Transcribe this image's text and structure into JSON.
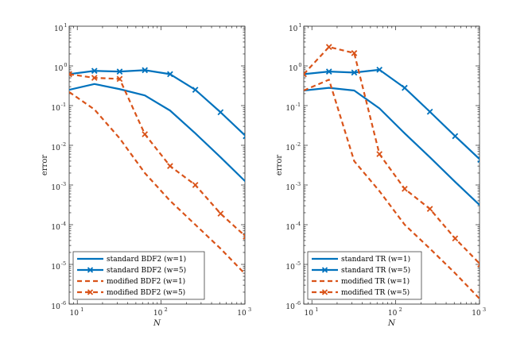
{
  "colors": {
    "standard": "#0072BD",
    "modified": "#D95319"
  },
  "chart_data": [
    {
      "type": "line",
      "x_scale": "log",
      "y_scale": "log",
      "xlabel": "N",
      "ylabel": "error",
      "xlim": [
        8,
        1000
      ],
      "ylim": [
        1e-06,
        10
      ],
      "x_ticks": [
        {
          "base": "10",
          "exp": "1",
          "value": 10
        },
        {
          "base": "10",
          "exp": "2",
          "value": 100
        },
        {
          "base": "10",
          "exp": "3",
          "value": 1000
        }
      ],
      "y_ticks": [
        {
          "base": "10",
          "exp": "-6",
          "value": 1e-06
        },
        {
          "base": "10",
          "exp": "-5",
          "value": 1e-05
        },
        {
          "base": "10",
          "exp": "-4",
          "value": 0.0001
        },
        {
          "base": "10",
          "exp": "-3",
          "value": 0.001
        },
        {
          "base": "10",
          "exp": "-2",
          "value": 0.01
        },
        {
          "base": "10",
          "exp": "-1",
          "value": 0.1
        },
        {
          "base": "10",
          "exp": "0",
          "value": 1
        },
        {
          "base": "10",
          "exp": "1",
          "value": 10
        }
      ],
      "x": [
        8,
        16,
        32,
        64,
        128,
        256,
        512,
        1024
      ],
      "legend_location": "bottom-left",
      "series": [
        {
          "name": "standard BDF2 (w=1)",
          "style": "solid",
          "marker": "none",
          "color_key": "standard",
          "values": [
            0.25,
            0.35,
            0.26,
            0.18,
            0.075,
            0.02,
            0.005,
            0.0012
          ]
        },
        {
          "name": "standard BDF2 (w=5)",
          "style": "solid",
          "marker": "x",
          "color_key": "standard",
          "values": [
            0.62,
            0.75,
            0.72,
            0.78,
            0.62,
            0.25,
            0.068,
            0.017
          ]
        },
        {
          "name": "modified BDF2 (w=1)",
          "style": "dashed",
          "marker": "none",
          "color_key": "modified",
          "values": [
            0.22,
            0.08,
            0.015,
            0.002,
            0.0004,
            0.0001,
            2.5e-05,
            5.5e-06
          ]
        },
        {
          "name": "modified BDF2 (w=5)",
          "style": "dashed",
          "marker": "x",
          "color_key": "modified",
          "values": [
            0.62,
            0.5,
            0.47,
            0.019,
            0.003,
            0.001,
            0.00019,
            5e-05
          ]
        }
      ]
    },
    {
      "type": "line",
      "x_scale": "log",
      "y_scale": "log",
      "xlabel": "N",
      "ylabel": "error",
      "xlim": [
        8,
        1000
      ],
      "ylim": [
        1e-06,
        10
      ],
      "x_ticks": [
        {
          "base": "10",
          "exp": "1",
          "value": 10
        },
        {
          "base": "10",
          "exp": "2",
          "value": 100
        },
        {
          "base": "10",
          "exp": "3",
          "value": 1000
        }
      ],
      "y_ticks": [
        {
          "base": "10",
          "exp": "-6",
          "value": 1e-06
        },
        {
          "base": "10",
          "exp": "-5",
          "value": 1e-05
        },
        {
          "base": "10",
          "exp": "-4",
          "value": 0.0001
        },
        {
          "base": "10",
          "exp": "-3",
          "value": 0.001
        },
        {
          "base": "10",
          "exp": "-2",
          "value": 0.01
        },
        {
          "base": "10",
          "exp": "-1",
          "value": 0.1
        },
        {
          "base": "10",
          "exp": "0",
          "value": 1
        },
        {
          "base": "10",
          "exp": "1",
          "value": 10
        }
      ],
      "x": [
        8,
        16,
        32,
        64,
        128,
        256,
        512,
        1024
      ],
      "legend_location": "bottom-left",
      "series": [
        {
          "name": "standard TR (w=1)",
          "style": "solid",
          "marker": "none",
          "color_key": "standard",
          "values": [
            0.24,
            0.28,
            0.24,
            0.085,
            0.02,
            0.005,
            0.0012,
            0.0003
          ]
        },
        {
          "name": "standard TR (w=5)",
          "style": "solid",
          "marker": "x",
          "color_key": "standard",
          "values": [
            0.62,
            0.72,
            0.68,
            0.8,
            0.28,
            0.07,
            0.017,
            0.0043
          ]
        },
        {
          "name": "modified TR (w=1)",
          "style": "dashed",
          "marker": "none",
          "color_key": "modified",
          "values": [
            0.24,
            0.45,
            0.004,
            0.0007,
            0.0001,
            2.5e-05,
            6e-06,
            1.3e-06
          ]
        },
        {
          "name": "modified TR (w=5)",
          "style": "dashed",
          "marker": "x",
          "color_key": "modified",
          "values": [
            0.62,
            3.0,
            2.1,
            0.006,
            0.0008,
            0.00025,
            4.5e-05,
            1e-05
          ]
        }
      ]
    }
  ]
}
